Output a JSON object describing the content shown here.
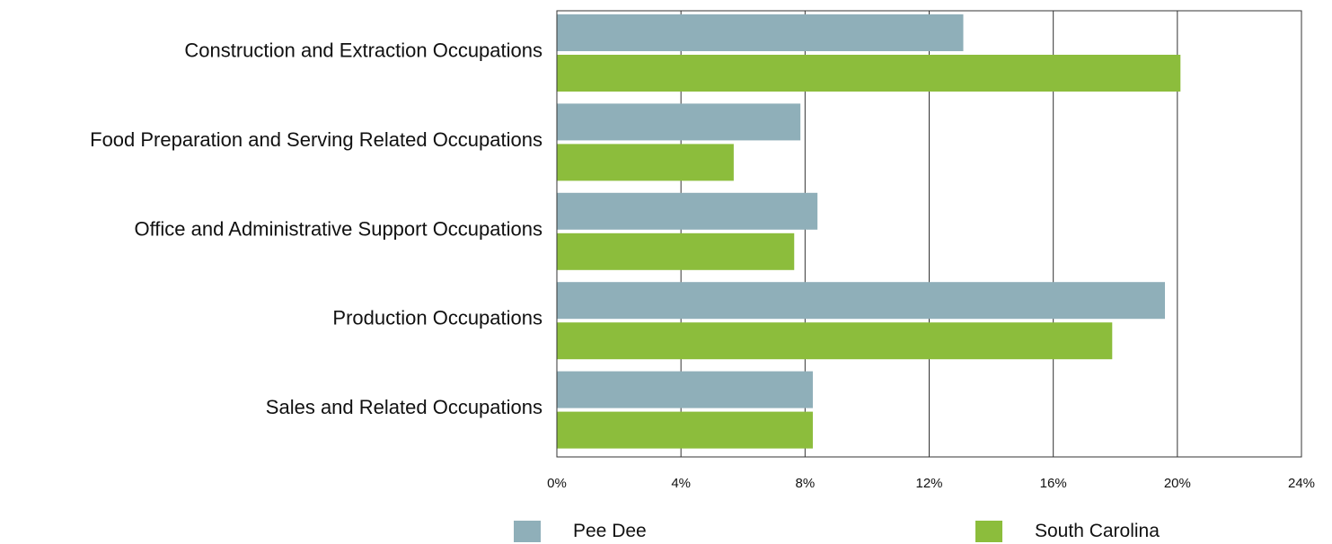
{
  "chart_data": {
    "type": "bar",
    "orientation": "horizontal",
    "categories": [
      "Construction and Extraction Occupations",
      "Food Preparation and Serving Related Occupations",
      "Office and Administrative Support Occupations",
      "Production Occupations",
      "Sales and Related Occupations"
    ],
    "series": [
      {
        "name": "Pee Dee",
        "color": "#8fafb9",
        "values": [
          13.1,
          7.85,
          8.4,
          19.6,
          8.25
        ]
      },
      {
        "name": "South Carolina",
        "color": "#8cbd3c",
        "values": [
          20.1,
          5.7,
          7.65,
          17.9,
          8.25
        ]
      }
    ],
    "xlim": [
      0,
      24
    ],
    "xticks": [
      0,
      4,
      8,
      12,
      16,
      20,
      24
    ],
    "xtick_labels": [
      "0%",
      "4%",
      "8%",
      "12%",
      "16%",
      "20%",
      "24%"
    ],
    "grid": "vertical",
    "legend_position": "bottom"
  }
}
